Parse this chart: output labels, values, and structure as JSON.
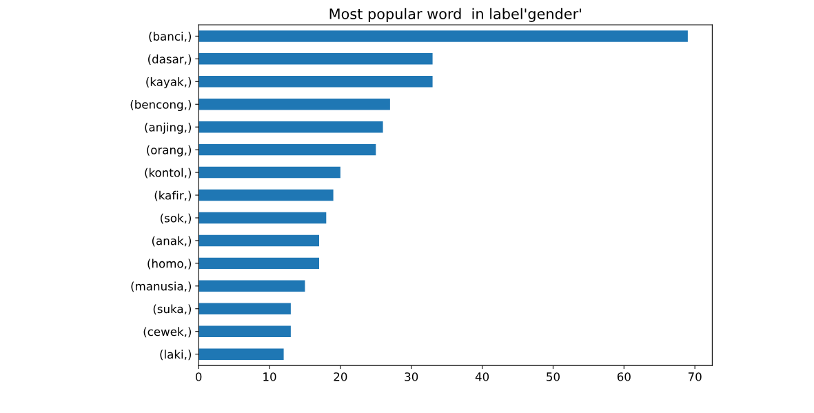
{
  "chart_data": {
    "type": "bar",
    "orientation": "horizontal",
    "title": "Most popular word  in label'gender'",
    "categories": [
      "(banci,)",
      "(dasar,)",
      "(kayak,)",
      "(bencong,)",
      "(anjing,)",
      "(orang,)",
      "(kontol,)",
      "(kafir,)",
      "(sok,)",
      "(anak,)",
      "(homo,)",
      "(manusia,)",
      "(suka,)",
      "(cewek,)",
      "(laki,)"
    ],
    "values": [
      69,
      33,
      33,
      27,
      26,
      25,
      20,
      19,
      18,
      17,
      17,
      15,
      13,
      13,
      12
    ],
    "color": "#1f77b4",
    "xlim": [
      0,
      72.45
    ],
    "xticks": [
      0,
      10,
      20,
      30,
      40,
      50,
      60,
      70
    ],
    "grid": false,
    "legend": false
  }
}
